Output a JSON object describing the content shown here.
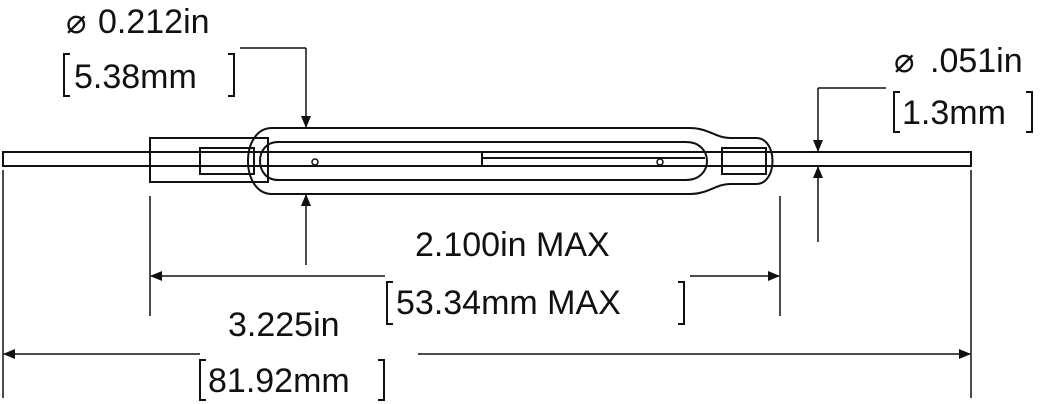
{
  "dimensions": {
    "diameter_body": {
      "symbol": "⌀",
      "inch": "0.212in",
      "mm": "5.38mm"
    },
    "diameter_lead": {
      "symbol": "⌀",
      "inch": ".051in",
      "mm": "1.3mm"
    },
    "body_length": {
      "inch": "2.100in MAX",
      "mm": "53.34mm MAX"
    },
    "overall_length": {
      "inch": "3.225in",
      "mm": "81.92mm"
    }
  },
  "colors": {
    "stroke": "#111111",
    "background": "#ffffff"
  }
}
